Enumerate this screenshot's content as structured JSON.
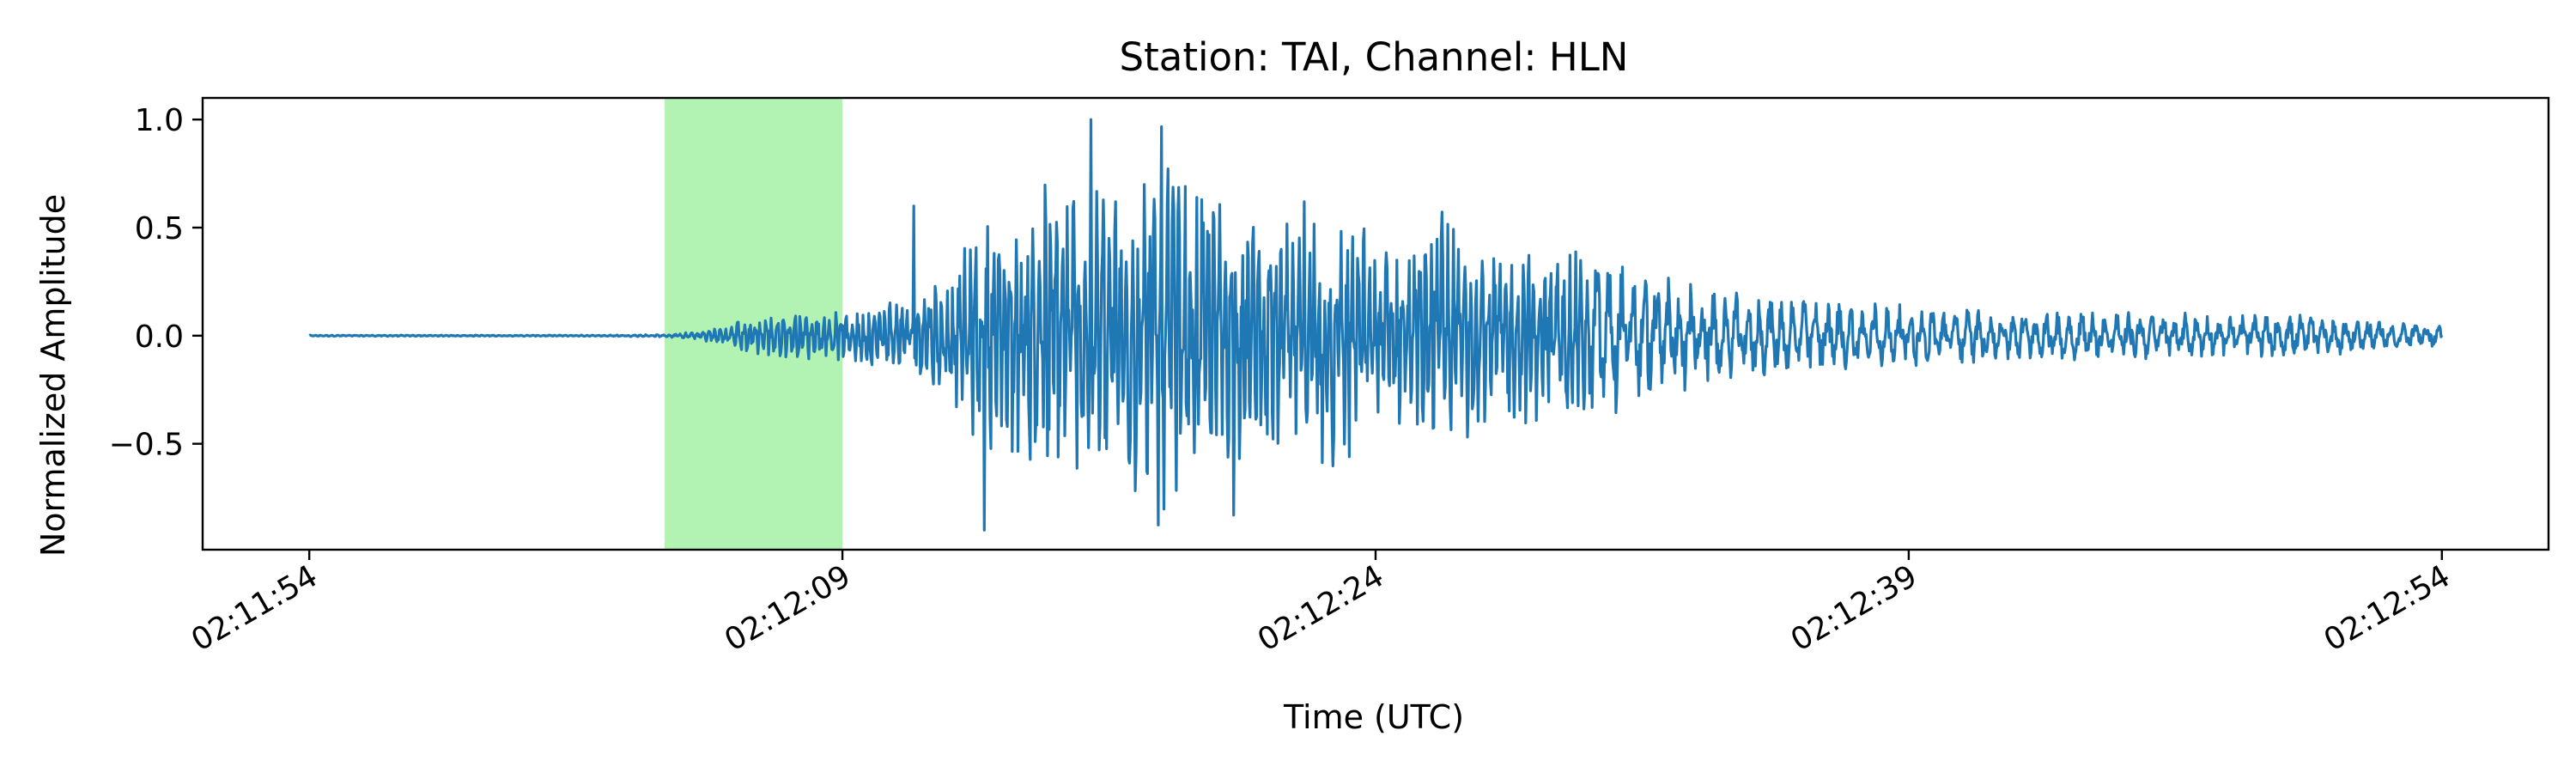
{
  "chart_data": {
    "type": "line",
    "title": "Station: TAI, Channel: HLN",
    "xlabel": "Time (UTC)",
    "ylabel": "Normalized Amplitude",
    "x_ticks": [
      "02:11:54",
      "02:12:09",
      "02:12:24",
      "02:12:39",
      "02:12:54"
    ],
    "y_ticks": [
      "1.0",
      "0.5",
      "0.0",
      "−0.5"
    ],
    "xlim": [
      "02:11:51",
      "02:12:57"
    ],
    "ylim": [
      -0.99,
      1.1
    ],
    "grid": false,
    "legend": "none",
    "highlight_window": {
      "start": "02:12:04",
      "end": "02:12:09",
      "color": "#b2f2b2"
    },
    "series": [
      {
        "color": "#1f77b4",
        "x": [
          "02:11:54",
          "02:11:56",
          "02:11:58",
          "02:12:00",
          "02:12:02",
          "02:12:04",
          "02:12:05",
          "02:12:06",
          "02:12:07",
          "02:12:08",
          "02:12:09",
          "02:12:10",
          "02:12:11",
          "02:12:12",
          "02:12:13",
          "02:12:14",
          "02:12:15",
          "02:12:16",
          "02:12:17",
          "02:12:18",
          "02:12:19",
          "02:12:20",
          "02:12:21",
          "02:12:22",
          "02:12:23",
          "02:12:24",
          "02:12:25",
          "02:12:26",
          "02:12:27",
          "02:12:28",
          "02:12:29",
          "02:12:30",
          "02:12:32",
          "02:12:34",
          "02:12:36",
          "02:12:38",
          "02:12:40",
          "02:12:42",
          "02:12:44",
          "02:12:46",
          "02:12:48",
          "02:12:50",
          "02:12:52",
          "02:12:54"
        ],
        "envelope": [
          0.003,
          0.003,
          0.003,
          0.003,
          0.003,
          0.006,
          0.02,
          0.07,
          0.1,
          0.11,
          0.12,
          0.16,
          0.2,
          0.3,
          0.55,
          0.62,
          0.85,
          0.7,
          0.75,
          1.0,
          0.72,
          0.6,
          0.55,
          0.5,
          0.82,
          0.48,
          0.4,
          0.62,
          0.45,
          0.42,
          0.38,
          0.4,
          0.3,
          0.2,
          0.18,
          0.16,
          0.13,
          0.12,
          0.12,
          0.11,
          0.1,
          0.1,
          0.08,
          0.05
        ],
        "peaks": [
          {
            "t": "02:12:11",
            "y": 0.6
          },
          {
            "t": "02:12:13",
            "y": -0.9
          },
          {
            "t": "02:12:16",
            "y": 1.0
          },
          {
            "t": "02:12:20",
            "y": -0.83
          },
          {
            "t": "02:12:22",
            "y": 0.62
          }
        ]
      }
    ]
  }
}
